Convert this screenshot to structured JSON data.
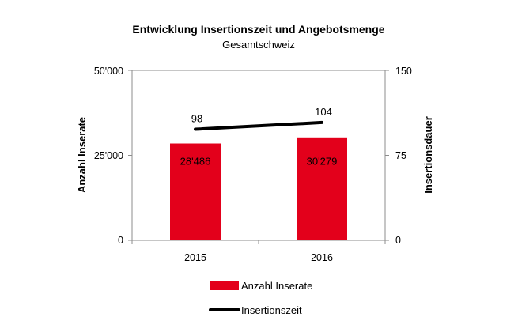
{
  "chart_data": {
    "type": "bar",
    "title": "Entwicklung Insertionszeit und Angebotsmenge",
    "subtitle": "Gesamtschweiz",
    "categories": [
      "2015",
      "2016"
    ],
    "ylabel": "Anzahl Inserate",
    "y2label": "Insertionsdauer",
    "ylim": [
      0,
      50000
    ],
    "y2lim": [
      0,
      150
    ],
    "yticks": [
      "0",
      "25'000",
      "50'000"
    ],
    "y2ticks": [
      "0",
      "75",
      "150"
    ],
    "grid": false,
    "legend_position": "bottom",
    "series": [
      {
        "name": "Anzahl Inserate",
        "type": "bar",
        "axis": "left",
        "color": "#e3001b",
        "values": [
          28486,
          30279
        ],
        "labels": [
          "28'486",
          "30'279"
        ]
      },
      {
        "name": "Insertionszeit",
        "type": "line",
        "axis": "right",
        "color": "#000000",
        "values": [
          98,
          104
        ],
        "labels": [
          "98",
          "104"
        ]
      }
    ]
  }
}
